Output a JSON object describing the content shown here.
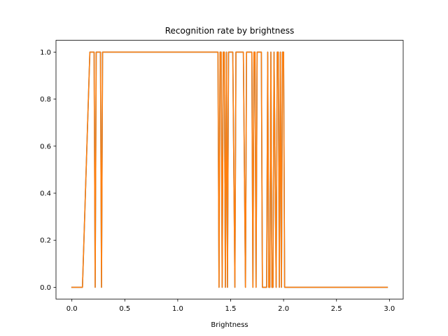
{
  "chart_data": {
    "type": "line",
    "title": "Recognition rate by brightness",
    "xlabel": "Brightness",
    "ylabel": "",
    "xlim": [
      -0.15,
      3.13
    ],
    "ylim": [
      -0.05,
      1.05
    ],
    "xticks": [
      0.0,
      0.5,
      1.0,
      1.5,
      2.0,
      2.5,
      3.0
    ],
    "xtick_labels": [
      "0.0",
      "0.5",
      "1.0",
      "1.5",
      "2.0",
      "2.5",
      "3.0"
    ],
    "yticks": [
      0.0,
      0.2,
      0.4,
      0.6,
      0.8,
      1.0
    ],
    "ytick_labels": [
      "0.0",
      "0.2",
      "0.4",
      "0.6",
      "0.8",
      "1.0"
    ],
    "grid": false,
    "legend": false,
    "series": [
      {
        "color": "#1f77b4",
        "x": [
          0.0,
          0.1,
          0.17,
          0.2,
          0.21,
          0.22,
          0.23,
          0.27,
          0.28,
          0.29,
          0.3,
          1.38,
          1.39,
          1.4,
          1.41,
          1.42,
          1.43,
          1.44,
          1.45,
          1.46,
          1.47,
          1.48,
          1.5,
          1.52,
          1.54,
          1.55,
          1.56,
          1.62,
          1.64,
          1.65,
          1.66,
          1.7,
          1.71,
          1.72,
          1.73,
          1.74,
          1.75,
          1.79,
          1.8,
          1.82,
          1.84,
          1.85,
          1.86,
          1.87,
          1.88,
          1.89,
          1.9,
          1.91,
          1.93,
          1.94,
          1.95,
          1.96,
          1.97,
          1.98,
          1.99,
          2.0,
          2.01,
          2.02,
          2.98
        ],
        "values": [
          0,
          0,
          1,
          1,
          1,
          0,
          1,
          1,
          0,
          1,
          1,
          1,
          0,
          1,
          1,
          0,
          1,
          1,
          0,
          1,
          0,
          1,
          1,
          1,
          0,
          1,
          1,
          1,
          0,
          1,
          1,
          1,
          0,
          1,
          1,
          0,
          1,
          1,
          0,
          0,
          0,
          1,
          0,
          0,
          1,
          0,
          0,
          1,
          0,
          1,
          1,
          0,
          1,
          0,
          1,
          1,
          0,
          0,
          0
        ]
      },
      {
        "color": "#ff7f0e",
        "x": [
          0.0,
          0.1,
          0.17,
          0.2,
          0.21,
          0.22,
          0.23,
          0.27,
          0.28,
          0.29,
          0.3,
          1.38,
          1.39,
          1.4,
          1.41,
          1.42,
          1.43,
          1.44,
          1.45,
          1.46,
          1.47,
          1.48,
          1.5,
          1.52,
          1.54,
          1.55,
          1.56,
          1.62,
          1.64,
          1.65,
          1.66,
          1.7,
          1.71,
          1.72,
          1.73,
          1.74,
          1.75,
          1.79,
          1.8,
          1.82,
          1.84,
          1.85,
          1.86,
          1.87,
          1.88,
          1.89,
          1.9,
          1.91,
          1.93,
          1.94,
          1.95,
          1.96,
          1.97,
          1.98,
          1.99,
          2.0,
          2.01,
          2.02,
          2.98
        ],
        "values": [
          0,
          0,
          1,
          1,
          1,
          0,
          1,
          1,
          0,
          1,
          1,
          1,
          0,
          1,
          1,
          0,
          1,
          1,
          0,
          1,
          0,
          1,
          1,
          1,
          0,
          1,
          1,
          1,
          0,
          1,
          1,
          1,
          0,
          1,
          1,
          0,
          1,
          1,
          0,
          0,
          0,
          1,
          0,
          0,
          1,
          0,
          0,
          1,
          0,
          1,
          1,
          0,
          1,
          0,
          1,
          1,
          0,
          0,
          0
        ]
      }
    ]
  }
}
